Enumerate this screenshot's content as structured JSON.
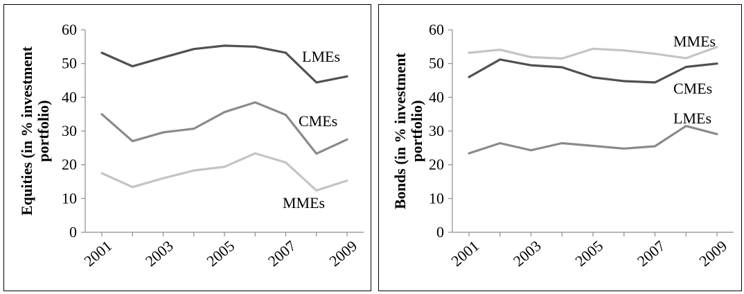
{
  "chart_data": [
    {
      "type": "line",
      "title": "",
      "xlabel": "",
      "ylabel": "Equities (in % investment portfolio)",
      "x": [
        2001,
        2002,
        2003,
        2004,
        2005,
        2006,
        2007,
        2008,
        2009
      ],
      "x_tick_labels": [
        "2001",
        "2003",
        "2005",
        "2007",
        "2009"
      ],
      "y_ticks": [
        "0",
        "10",
        "20",
        "30",
        "40",
        "50",
        "60"
      ],
      "ylim": [
        0,
        60
      ],
      "grid": false,
      "series": [
        {
          "name": "LMEs",
          "color": "#505050",
          "values": [
            53.2,
            49.2,
            51.8,
            54.3,
            55.3,
            55.0,
            53.2,
            44.4,
            46.2
          ]
        },
        {
          "name": "CMEs",
          "color": "#8a8a8a",
          "values": [
            35.0,
            27.0,
            29.6,
            30.7,
            35.6,
            38.5,
            34.8,
            23.3,
            27.5
          ]
        },
        {
          "name": "MMEs",
          "color": "#c4c4c4",
          "values": [
            17.5,
            13.4,
            16.0,
            18.3,
            19.4,
            23.4,
            20.7,
            12.4,
            15.3
          ]
        }
      ]
    },
    {
      "type": "line",
      "title": "",
      "xlabel": "",
      "ylabel": "Bonds (in % investment portfolio)",
      "x": [
        2001,
        2002,
        2003,
        2004,
        2005,
        2006,
        2007,
        2008,
        2009
      ],
      "x_tick_labels": [
        "2001",
        "2003",
        "2005",
        "2007",
        "2009"
      ],
      "y_ticks": [
        "0",
        "10",
        "20",
        "30",
        "40",
        "50",
        "60"
      ],
      "ylim": [
        0,
        60
      ],
      "grid": false,
      "series": [
        {
          "name": "MMEs",
          "color": "#c4c4c4",
          "values": [
            53.2,
            54.1,
            51.9,
            51.5,
            54.4,
            53.9,
            52.9,
            51.6,
            54.9
          ]
        },
        {
          "name": "CMEs",
          "color": "#505050",
          "values": [
            46.0,
            51.2,
            49.5,
            48.9,
            45.9,
            44.8,
            44.4,
            49.0,
            50.0
          ]
        },
        {
          "name": "LMEs",
          "color": "#8a8a8a",
          "values": [
            23.4,
            26.4,
            24.3,
            26.4,
            25.6,
            24.8,
            25.5,
            31.5,
            29.1
          ]
        }
      ]
    }
  ]
}
